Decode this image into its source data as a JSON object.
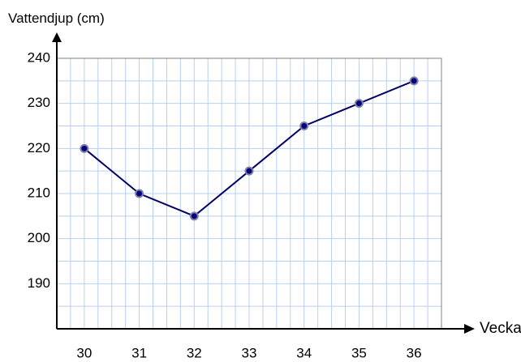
{
  "chart_data": {
    "type": "line",
    "title": "",
    "xlabel": "Vecka",
    "ylabel": "Vattendjup (cm)",
    "x": [
      30,
      31,
      32,
      33,
      34,
      35,
      36
    ],
    "values": [
      220,
      210,
      205,
      215,
      225,
      230,
      235
    ],
    "x_tick_labels": [
      "30",
      "31",
      "32",
      "33",
      "34",
      "35",
      "36"
    ],
    "y_tick_labels": [
      "240",
      "230",
      "220",
      "210",
      "200",
      "190"
    ],
    "y_ticks": [
      240,
      230,
      220,
      210,
      200,
      190
    ],
    "xlim": [
      29.5,
      36.5
    ],
    "ylim": [
      180,
      240
    ],
    "grid": true,
    "legend": "none",
    "colors": {
      "line": "#000066",
      "marker_fill": "#000080",
      "marker_stroke": "#8080a0",
      "grid": "#b8d0f0",
      "plot_border": "#808080",
      "axis": "#000000"
    }
  }
}
